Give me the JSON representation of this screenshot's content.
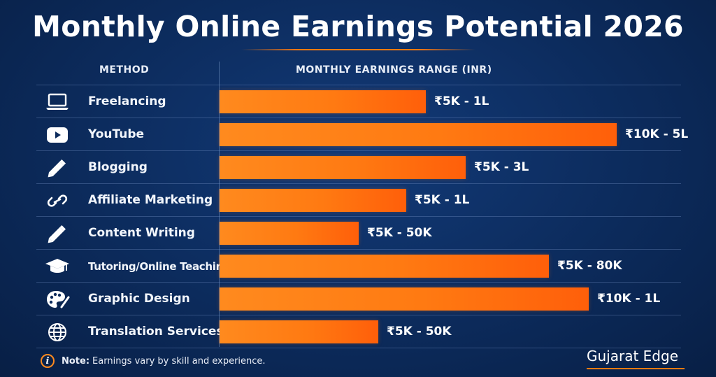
{
  "header": {
    "title": "Monthly Online Earnings Potential 2026",
    "method_col": "METHOD",
    "range_col": "MONTHLY EARNINGS RANGE (INR)"
  },
  "colors": {
    "background": "#0c2b5c",
    "bar": "#ff7a12",
    "accent": "#ff7a10",
    "text": "#ffffff"
  },
  "rows": [
    {
      "label": "Freelancing",
      "value_label": "₹5K - 1L",
      "icon": "laptop-icon"
    },
    {
      "label": "YouTube",
      "value_label": "₹10K - 5L",
      "icon": "youtube-play-icon"
    },
    {
      "label": "Blogging",
      "value_label": "₹5K - 3L",
      "icon": "pencil-icon"
    },
    {
      "label": "Affiliate Marketing",
      "value_label": "₹5K - 1L",
      "icon": "link-icon"
    },
    {
      "label": "Content Writing",
      "value_label": "₹5K - 50K",
      "icon": "pencil-icon"
    },
    {
      "label": "Tutoring/Online Teaching",
      "value_label": "₹5K - 80K",
      "icon": "graduation-cap-icon"
    },
    {
      "label": "Graphic Design",
      "value_label": "₹10K - 1L",
      "icon": "palette-icon"
    },
    {
      "label": "Translation Services",
      "value_label": "₹5K - 50K",
      "icon": "globe-icon"
    }
  ],
  "chart_data": {
    "type": "bar",
    "orientation": "horizontal",
    "title": "Monthly Online Earnings Potential 2026",
    "xlabel": "MONTHLY EARNINGS RANGE (INR)",
    "ylabel": "METHOD",
    "categories": [
      "Freelancing",
      "YouTube",
      "Blogging",
      "Affiliate Marketing",
      "Content Writing",
      "Tutoring/Online Teaching",
      "Graphic Design",
      "Translation Services"
    ],
    "value_labels": [
      "₹5K - 1L",
      "₹10K - 5L",
      "₹5K - 3L",
      "₹5K - 1L",
      "₹5K - 50K",
      "₹5K - 80K",
      "₹10K - 1L",
      "₹5K - 50K"
    ],
    "relative_bar_length": [
      0.52,
      1.0,
      0.62,
      0.47,
      0.35,
      0.83,
      0.93,
      0.4
    ],
    "grid": false,
    "legend": "none"
  },
  "footer": {
    "note_label": "Note:",
    "note_text": "Earnings vary by skill and experience.",
    "brand": "Gujarat Edge"
  }
}
